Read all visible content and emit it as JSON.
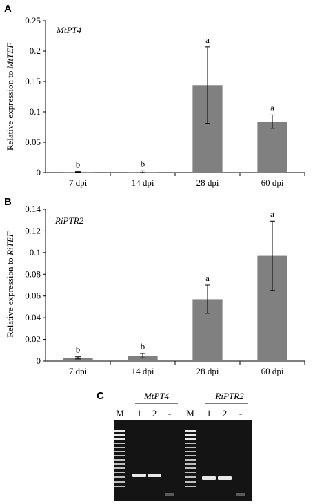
{
  "chart_data": [
    {
      "panel_label": "A",
      "type": "bar",
      "categories": [
        "7 dpi",
        "14 dpi",
        "28 dpi",
        "60 dpi"
      ],
      "series": [
        {
          "name": "MtPT4",
          "values": [
            0.001,
            0.001,
            0.144,
            0.084
          ]
        }
      ],
      "errors": [
        0.0005,
        0.002,
        0.063,
        0.011
      ],
      "letters": [
        "b",
        "b",
        "a",
        "a"
      ],
      "ylabel_prefix": "Relative  expression  to ",
      "ylabel_gene": "MtTEF",
      "yticks": [
        "0",
        "0.05",
        "0.1",
        "0.15",
        "0.2",
        "0.25"
      ],
      "ylim": [
        0,
        0.25
      ],
      "bar_color": "#808080"
    },
    {
      "panel_label": "B",
      "type": "bar",
      "categories": [
        "7 dpi",
        "14 dpi",
        "28 dpi",
        "60 dpi"
      ],
      "series": [
        {
          "name": "RiPTR2",
          "values": [
            0.003,
            0.005,
            0.057,
            0.097
          ]
        }
      ],
      "errors": [
        0.001,
        0.002,
        0.013,
        0.032
      ],
      "letters": [
        "b",
        "b",
        "a",
        "a"
      ],
      "ylabel_prefix": "Relative  expression  to ",
      "ylabel_gene": "RiTEF",
      "yticks": [
        "0",
        "0.02",
        "0.04",
        "0.06",
        "0.08",
        "0.1",
        "0.12",
        "0.14"
      ],
      "ylim": [
        0,
        0.14
      ],
      "bar_color": "#808080"
    }
  ],
  "gel": {
    "panel_label": "C",
    "group1_name": "MtPT4",
    "group2_name": "RiPTR2",
    "lane_labels": [
      "M",
      "1",
      "2",
      "-",
      "M",
      "1",
      "2",
      "-"
    ],
    "background_color": "#141414",
    "band_color": "#e8e8e8"
  }
}
